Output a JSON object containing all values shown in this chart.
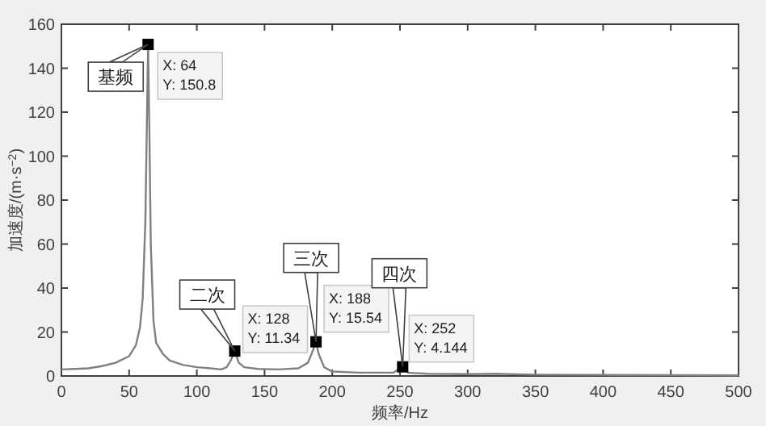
{
  "chart_data": {
    "type": "line",
    "xlabel": "频率/Hz",
    "ylabel": "加速度/(m·s$^{−2}$)",
    "xlim": [
      0,
      500
    ],
    "xticks": [
      0,
      50,
      100,
      150,
      200,
      250,
      300,
      350,
      400,
      450,
      500
    ],
    "ylim": [
      0,
      160
    ],
    "yticks": [
      0,
      20,
      40,
      60,
      80,
      100,
      120,
      140,
      160
    ],
    "grid": false,
    "series": [
      {
        "color": "#808080",
        "marker": "none",
        "x": [
          0,
          10,
          20,
          30,
          40,
          50,
          55,
          58,
          60,
          62,
          63,
          64,
          65,
          66,
          68,
          70,
          75,
          80,
          90,
          100,
          110,
          118,
          122,
          125,
          128,
          131,
          135,
          145,
          160,
          175,
          182,
          186,
          188,
          190,
          194,
          200,
          220,
          245,
          252,
          256,
          270,
          300,
          320,
          350,
          400,
          450,
          500
        ],
        "values": [
          3,
          3.2,
          3.5,
          4.5,
          6,
          9,
          14,
          22,
          35,
          70,
          110,
          150.8,
          110,
          60,
          25,
          15,
          10,
          7,
          5,
          4,
          3.5,
          3,
          4,
          7,
          11.34,
          6,
          4,
          3.2,
          3,
          3.5,
          6,
          12,
          15.54,
          10,
          4,
          2,
          1.5,
          1.5,
          4.144,
          1.5,
          1,
          0.8,
          1,
          0.6,
          0.5,
          0.4,
          0.3
        ]
      },
      {
        "type": "scatter",
        "color": "#000000",
        "marker": "square",
        "x": [
          64,
          128,
          188,
          252
        ],
        "values": [
          150.8,
          11.34,
          15.54,
          4.144
        ]
      }
    ],
    "annotations": [
      {
        "text": "基频",
        "x": 64,
        "y": 150.8
      },
      {
        "text": "X: 64\nY: 150.8",
        "x": 64,
        "y": 150.8
      },
      {
        "text": "二次",
        "x": 128,
        "y": 11.34
      },
      {
        "text": "X: 128\nY: 11.34",
        "x": 128,
        "y": 11.34
      },
      {
        "text": "三次",
        "x": 188,
        "y": 15.54
      },
      {
        "text": "X: 188\nY: 15.54",
        "x": 188,
        "y": 15.54
      },
      {
        "text": "四次",
        "x": 252,
        "y": 4.144
      },
      {
        "text": "X: 252\nY: 4.144",
        "x": 252,
        "y": 4.144
      }
    ]
  }
}
